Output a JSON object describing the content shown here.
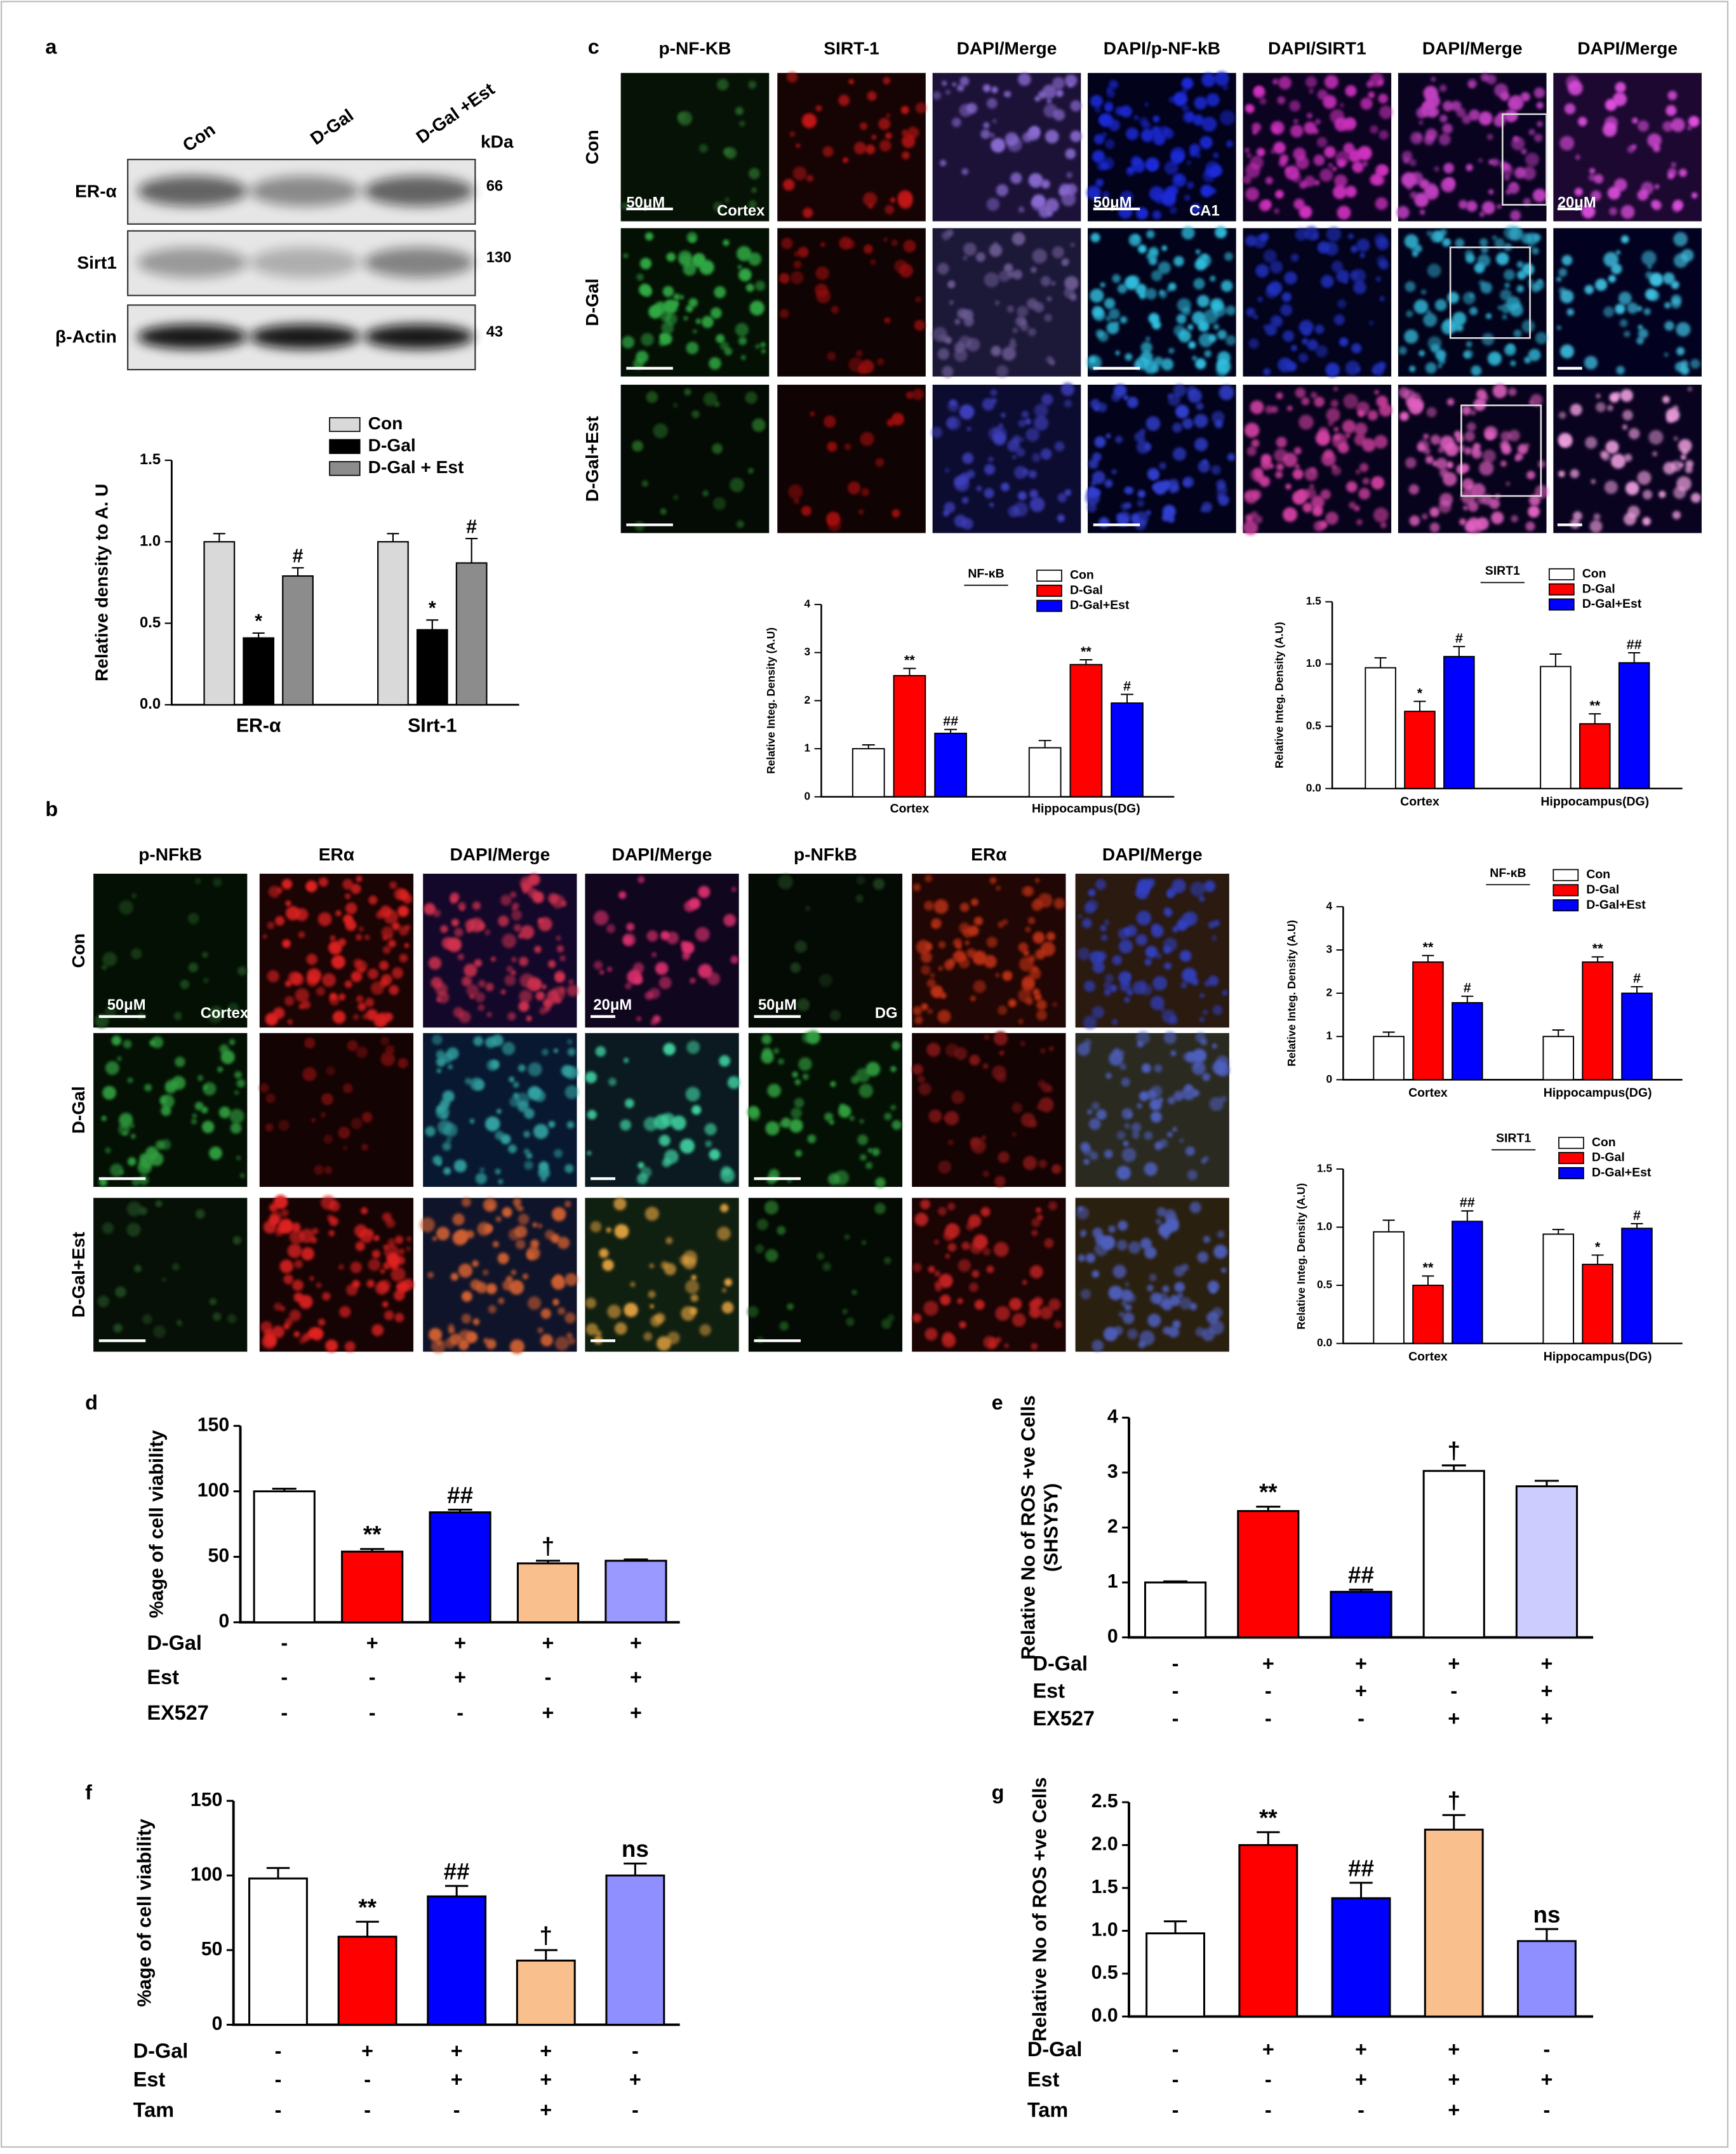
{
  "panel_labels": [
    "a",
    "b",
    "c",
    "d",
    "e",
    "f",
    "g"
  ],
  "blot": {
    "lanes": [
      "Con",
      "D-Gal",
      "D-Gal +Est"
    ],
    "unit": "kDa",
    "rows": [
      {
        "name": "ER-α",
        "kda": 66
      },
      {
        "name": "Sirt1",
        "kda": 130
      },
      {
        "name": "β-Actin",
        "kda": 43
      }
    ]
  },
  "micro_c": {
    "columns": [
      "p-NF-KB",
      "SIRT-1",
      "DAPI/Merge",
      "DAPI/p-NF-kB",
      "DAPI/SIRT1",
      "DAPI/Merge",
      "DAPI/Merge"
    ],
    "rows": [
      "Con",
      "D-Gal",
      "D-Gal+Est"
    ],
    "labels": [
      "50μM",
      "Cortex",
      "50μM",
      "CA1",
      "20μM"
    ]
  },
  "micro_b": {
    "columns": [
      "p-NFkB",
      "ERα",
      "DAPI/Merge",
      "DAPI/Merge",
      "p-NFkB",
      "ERα",
      "DAPI/Merge"
    ],
    "rows": [
      "Con",
      "D-Gal",
      "D-Gal+Est"
    ],
    "labels": [
      "50μM",
      "Cortex",
      "20μM",
      "50μM",
      "DG"
    ]
  },
  "chart_data": [
    {
      "type": "bar",
      "ylabel": "Relative density to A. U",
      "categories": [
        "ER-α",
        "SIrt-1"
      ],
      "ylim": [
        0,
        1.5
      ],
      "yticks": [
        {
          "value": 0,
          "label": "0.0"
        },
        {
          "value": 0.5,
          "label": "0.5"
        },
        {
          "value": 1,
          "label": "1.0"
        },
        {
          "value": 1.5,
          "label": "1.5"
        }
      ],
      "series": [
        {
          "name": "Con",
          "color": "#d9d9d9",
          "values": [
            1.0,
            1.0
          ],
          "error": [
            0.05,
            0.05
          ]
        },
        {
          "name": "D-Gal",
          "color": "#000000",
          "values": [
            0.41,
            0.46
          ],
          "error": [
            0.03,
            0.06
          ],
          "annotations": [
            "*",
            "*"
          ]
        },
        {
          "name": "D-Gal + Est",
          "color": "#8c8c8c",
          "values": [
            0.79,
            0.87
          ],
          "error": [
            0.05,
            0.15
          ],
          "annotations": [
            "#",
            "#"
          ]
        }
      ]
    },
    {
      "type": "bar",
      "title": "NF-κB",
      "ylabel": "Relative Integ. Density  (A.U)",
      "categories": [
        "Cortex",
        "Hippocampus(DG)"
      ],
      "ylim": [
        0,
        4
      ],
      "yticks": [
        0,
        1,
        2,
        3,
        4
      ],
      "series": [
        {
          "name": "Con",
          "color": "#ffffff",
          "values": [
            1.0,
            1.02
          ],
          "error": [
            0.08,
            0.15
          ]
        },
        {
          "name": "D-Gal",
          "color": "#ff0000",
          "values": [
            2.52,
            2.75
          ],
          "error": [
            0.15,
            0.1
          ],
          "annotations": [
            "**",
            "**"
          ]
        },
        {
          "name": "D-Gal+Est",
          "color": "#0000ff",
          "values": [
            1.32,
            1.95
          ],
          "error": [
            0.08,
            0.18
          ],
          "annotations": [
            "##",
            "#"
          ]
        }
      ]
    },
    {
      "type": "bar",
      "title": "SIRT1",
      "ylabel": "Relative Integ. Density  (A.U)",
      "categories": [
        "Cortex",
        "Hippocampus(DG)"
      ],
      "ylim": [
        0,
        1.5
      ],
      "yticks": [
        {
          "value": 0,
          "label": "0.0"
        },
        {
          "value": 0.5,
          "label": "0.5"
        },
        {
          "value": 1,
          "label": "1.0"
        },
        {
          "value": 1.5,
          "label": "1.5"
        }
      ],
      "series": [
        {
          "name": "Con",
          "color": "#ffffff",
          "values": [
            0.97,
            0.98
          ],
          "error": [
            0.08,
            0.1
          ]
        },
        {
          "name": "D-Gal",
          "color": "#ff0000",
          "values": [
            0.62,
            0.52
          ],
          "error": [
            0.08,
            0.08
          ],
          "annotations": [
            "*",
            "**"
          ]
        },
        {
          "name": "D-Gal+Est",
          "color": "#0000ff",
          "values": [
            1.06,
            1.01
          ],
          "error": [
            0.08,
            0.08
          ],
          "annotations": [
            "#",
            "##"
          ]
        }
      ]
    },
    {
      "type": "bar",
      "title": "NF-κB",
      "ylabel": "Relative Integ. Density  (A.U)",
      "categories": [
        "Cortex",
        "Hippocampus(DG)"
      ],
      "ylim": [
        0,
        4
      ],
      "yticks": [
        0,
        1,
        2,
        3,
        4
      ],
      "series": [
        {
          "name": "Con",
          "color": "#ffffff",
          "values": [
            1.0,
            1.0
          ],
          "error": [
            0.1,
            0.15
          ]
        },
        {
          "name": "D-Gal",
          "color": "#ff0000",
          "values": [
            2.72,
            2.72
          ],
          "error": [
            0.15,
            0.12
          ],
          "annotations": [
            "**",
            "**"
          ]
        },
        {
          "name": "D-Gal+Est",
          "color": "#0000ff",
          "values": [
            1.78,
            2.0
          ],
          "error": [
            0.15,
            0.15
          ],
          "annotations": [
            "#",
            "#"
          ]
        }
      ]
    },
    {
      "type": "bar",
      "title": "SIRT1",
      "ylabel": "Relative Integ. Density  (A.U)",
      "categories": [
        "Cortex",
        "Hippocampus(DG)"
      ],
      "ylim": [
        0,
        1.5
      ],
      "yticks": [
        {
          "value": 0,
          "label": "0.0"
        },
        {
          "value": 0.5,
          "label": "0.5"
        },
        {
          "value": 1,
          "label": "1.0"
        },
        {
          "value": 1.5,
          "label": "1.5"
        }
      ],
      "series": [
        {
          "name": "Con",
          "color": "#ffffff",
          "values": [
            0.96,
            0.94
          ],
          "error": [
            0.1,
            0.04
          ]
        },
        {
          "name": "D-Gal",
          "color": "#ff0000",
          "values": [
            0.5,
            0.68
          ],
          "error": [
            0.08,
            0.08
          ],
          "annotations": [
            "**",
            "*"
          ]
        },
        {
          "name": "D-Gal+Est",
          "color": "#0000ff",
          "values": [
            1.05,
            0.99
          ],
          "error": [
            0.09,
            0.04
          ],
          "annotations": [
            "##",
            "#"
          ]
        }
      ]
    },
    {
      "type": "bar",
      "ylabel": "%age of cell viability",
      "values": [
        100,
        54,
        84,
        45,
        47
      ],
      "error": [
        2,
        2,
        2,
        2,
        1
      ],
      "colors": [
        "#ffffff",
        "#ff0000",
        "#0000ff",
        "#f9c08e",
        "#9999ff"
      ],
      "annotations": [
        null,
        "**",
        "##",
        "†",
        null
      ],
      "ylim": [
        0,
        150
      ],
      "yticks": [
        0,
        50,
        100,
        150
      ],
      "conditions": [
        {
          "name": "D-Gal",
          "signs": [
            "-",
            "+",
            "+",
            "+",
            "+"
          ]
        },
        {
          "name": "Est",
          "signs": [
            "-",
            "-",
            "+",
            "-",
            "+"
          ]
        },
        {
          "name": "EX527",
          "signs": [
            "-",
            "-",
            "-",
            "+",
            "+"
          ]
        }
      ]
    },
    {
      "type": "bar",
      "ylabel": [
        "Relative No of ROS +ve Cells",
        "(SHSY5Y)"
      ],
      "values": [
        1.0,
        2.3,
        0.83,
        3.03,
        2.75
      ],
      "error": [
        0.02,
        0.08,
        0.04,
        0.1,
        0.1
      ],
      "colors": [
        "#ffffff",
        "#ff0000",
        "#0000ff",
        "#ffffff",
        "#ccccff"
      ],
      "annotations": [
        null,
        "**",
        "##",
        "†",
        null
      ],
      "ylim": [
        0,
        4
      ],
      "yticks": [
        0,
        1,
        2,
        3,
        4
      ],
      "conditions": [
        {
          "name": "D-Gal",
          "signs": [
            "-",
            "+",
            "+",
            "+",
            "+"
          ]
        },
        {
          "name": "Est",
          "signs": [
            "-",
            "-",
            "+",
            "-",
            "+"
          ]
        },
        {
          "name": "EX527",
          "signs": [
            "-",
            "-",
            "-",
            "+",
            "+"
          ]
        }
      ]
    },
    {
      "type": "bar",
      "ylabel": "%age of cell viability",
      "values": [
        98,
        59,
        86,
        43,
        100
      ],
      "error": [
        7,
        10,
        7,
        7,
        8
      ],
      "colors": [
        "#ffffff",
        "#ff0000",
        "#0000ff",
        "#f9c08e",
        "#8f8fff"
      ],
      "annotations": [
        null,
        "**",
        "##",
        "†",
        "ns"
      ],
      "ylim": [
        0,
        150
      ],
      "yticks": [
        0,
        50,
        100,
        150
      ],
      "conditions": [
        {
          "name": "D-Gal",
          "signs": [
            "-",
            "+",
            "+",
            "+",
            "-"
          ]
        },
        {
          "name": "Est",
          "signs": [
            "-",
            "-",
            "+",
            "+",
            "+"
          ]
        },
        {
          "name": "Tam",
          "signs": [
            "-",
            "-",
            "-",
            "+",
            "-"
          ]
        }
      ]
    },
    {
      "type": "bar",
      "ylabel": "Relative No of ROS +ve Cells",
      "values": [
        0.97,
        2.0,
        1.38,
        2.18,
        0.88
      ],
      "error": [
        0.14,
        0.15,
        0.18,
        0.17,
        0.14
      ],
      "colors": [
        "#ffffff",
        "#ff0000",
        "#0000ff",
        "#f9c08e",
        "#8f8fff"
      ],
      "annotations": [
        null,
        "**",
        "##",
        "†",
        "ns"
      ],
      "ylim": [
        0,
        2.5
      ],
      "yticks": [
        {
          "value": 0,
          "label": "0.0"
        },
        {
          "value": 0.5,
          "label": "0.5"
        },
        {
          "value": 1,
          "label": "1.0"
        },
        {
          "value": 1.5,
          "label": "1.5"
        },
        {
          "value": 2,
          "label": "2.0"
        },
        {
          "value": 2.5,
          "label": "2.5"
        }
      ],
      "conditions": [
        {
          "name": "D-Gal",
          "signs": [
            "-",
            "+",
            "+",
            "+",
            "-"
          ]
        },
        {
          "name": "Est",
          "signs": [
            "-",
            "-",
            "+",
            "+",
            "+"
          ]
        },
        {
          "name": "Tam",
          "signs": [
            "-",
            "-",
            "-",
            "+",
            "-"
          ]
        }
      ]
    }
  ]
}
